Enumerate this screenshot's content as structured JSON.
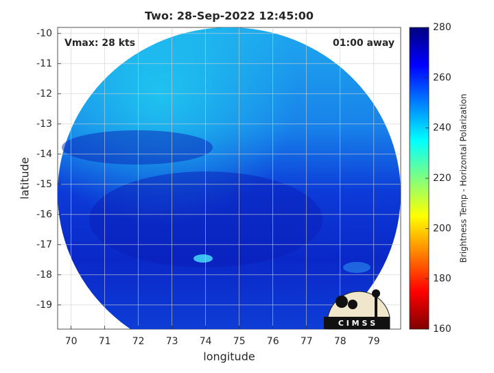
{
  "chart_data": {
    "type": "map",
    "title": "Two: 28-Sep-2022 12:45:00",
    "xlabel": "longitude",
    "ylabel": "latitude",
    "xlim": [
      69.6,
      79.8
    ],
    "xticks": [
      70,
      71,
      72,
      73,
      74,
      75,
      76,
      77,
      78,
      79
    ],
    "ylim": [
      -19.8,
      -9.8
    ],
    "yticks": [
      -10,
      -11,
      -12,
      -13,
      -14,
      -15,
      -16,
      -17,
      -18,
      -19
    ],
    "grid": true,
    "annotations": [
      "Vmax: 28 kts",
      "01:00 away"
    ],
    "logo": "C I M S S",
    "colorbar": {
      "label": "Brightness Temp - Horizontal Polarization",
      "colormap": "jet",
      "lim": [
        160,
        280
      ],
      "ticks": [
        160,
        180,
        200,
        220,
        240,
        260,
        280
      ]
    }
  }
}
